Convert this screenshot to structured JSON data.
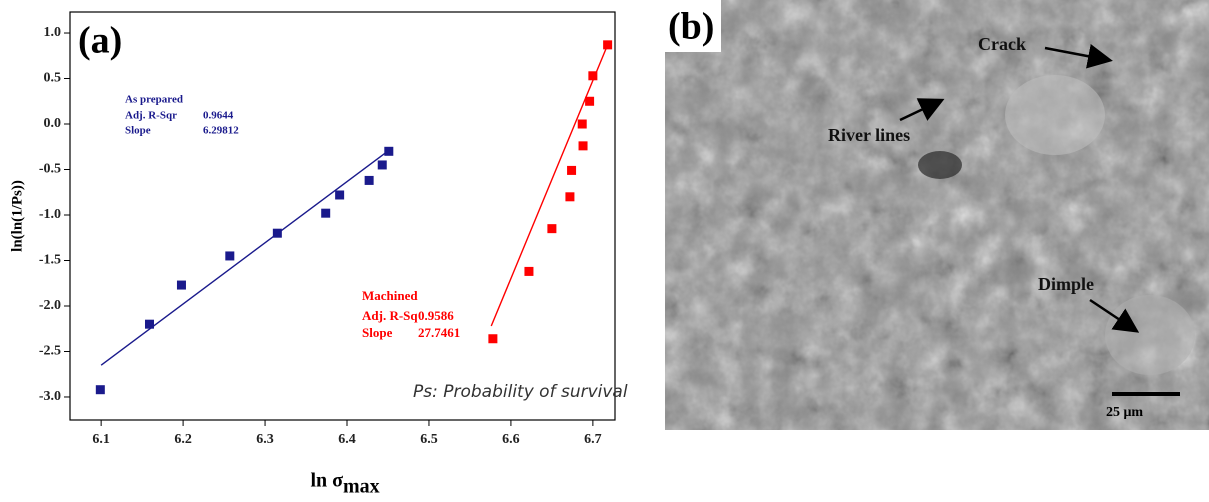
{
  "chart_data": {
    "type": "scatter",
    "panel_label": "(a)",
    "x_label_main": "ln σ",
    "x_label_subscript": "max",
    "y_label": "ln(ln(1/Ps))",
    "annotation": "Ps: Probability of survival",
    "xlim": [
      6.062,
      6.727
    ],
    "ylim": [
      -3.253,
      1.231
    ],
    "xticks": [
      6.1,
      6.2,
      6.3,
      6.4,
      6.5,
      6.6,
      6.7
    ],
    "yticks": [
      {
        "value": 1,
        "label": "1.0"
      },
      {
        "value": 0.5,
        "label": "0.5"
      },
      {
        "value": 0,
        "label": "0.0"
      },
      {
        "value": -0.5,
        "label": "-0.5"
      },
      {
        "value": -1,
        "label": "-1.0"
      },
      {
        "value": -1.5,
        "label": "-1.5"
      },
      {
        "value": -2,
        "label": "-2.0"
      },
      {
        "value": -2.5,
        "label": "-2.5"
      },
      {
        "value": -3,
        "label": "-3.0"
      }
    ],
    "series": [
      {
        "name": "As prepared",
        "color": "#1a1a8c",
        "x": [
          6.099,
          6.159,
          6.198,
          6.257,
          6.315,
          6.374,
          6.391,
          6.427,
          6.443,
          6.451
        ],
        "values": [
          -2.92,
          -2.2,
          -1.77,
          -1.45,
          -1.2,
          -0.98,
          -0.78,
          -0.62,
          -0.45,
          -0.3
        ],
        "fit_x": [
          6.1,
          6.451
        ],
        "fit_y": [
          -2.65,
          -0.29
        ],
        "stats": [
          {
            "label": "Adj. R-Sqr",
            "value": 0.9644
          },
          {
            "label": "Slope",
            "value": 6.29812
          }
        ]
      },
      {
        "name": "Machined",
        "color": "#ff0000",
        "x": [
          6.578,
          6.622,
          6.65,
          6.672,
          6.674,
          6.688,
          6.687,
          6.696,
          6.7,
          6.718
        ],
        "values": [
          -2.36,
          -1.62,
          -1.15,
          -0.8,
          -0.51,
          -0.24,
          0.0,
          0.25,
          0.53,
          0.87
        ],
        "fit_x": [
          6.576,
          6.718
        ],
        "fit_y": [
          -2.22,
          0.87
        ],
        "stats": [
          {
            "label": "Adj. R-Sq",
            "value": 0.9586
          },
          {
            "label": "Slope",
            "value": 27.7461
          }
        ]
      }
    ]
  },
  "panel_b": {
    "panel_label": "(b)",
    "labels": {
      "crack": "Crack",
      "river_lines": "River lines",
      "dimple": "Dimple"
    },
    "scale_bar": "25 μm"
  }
}
